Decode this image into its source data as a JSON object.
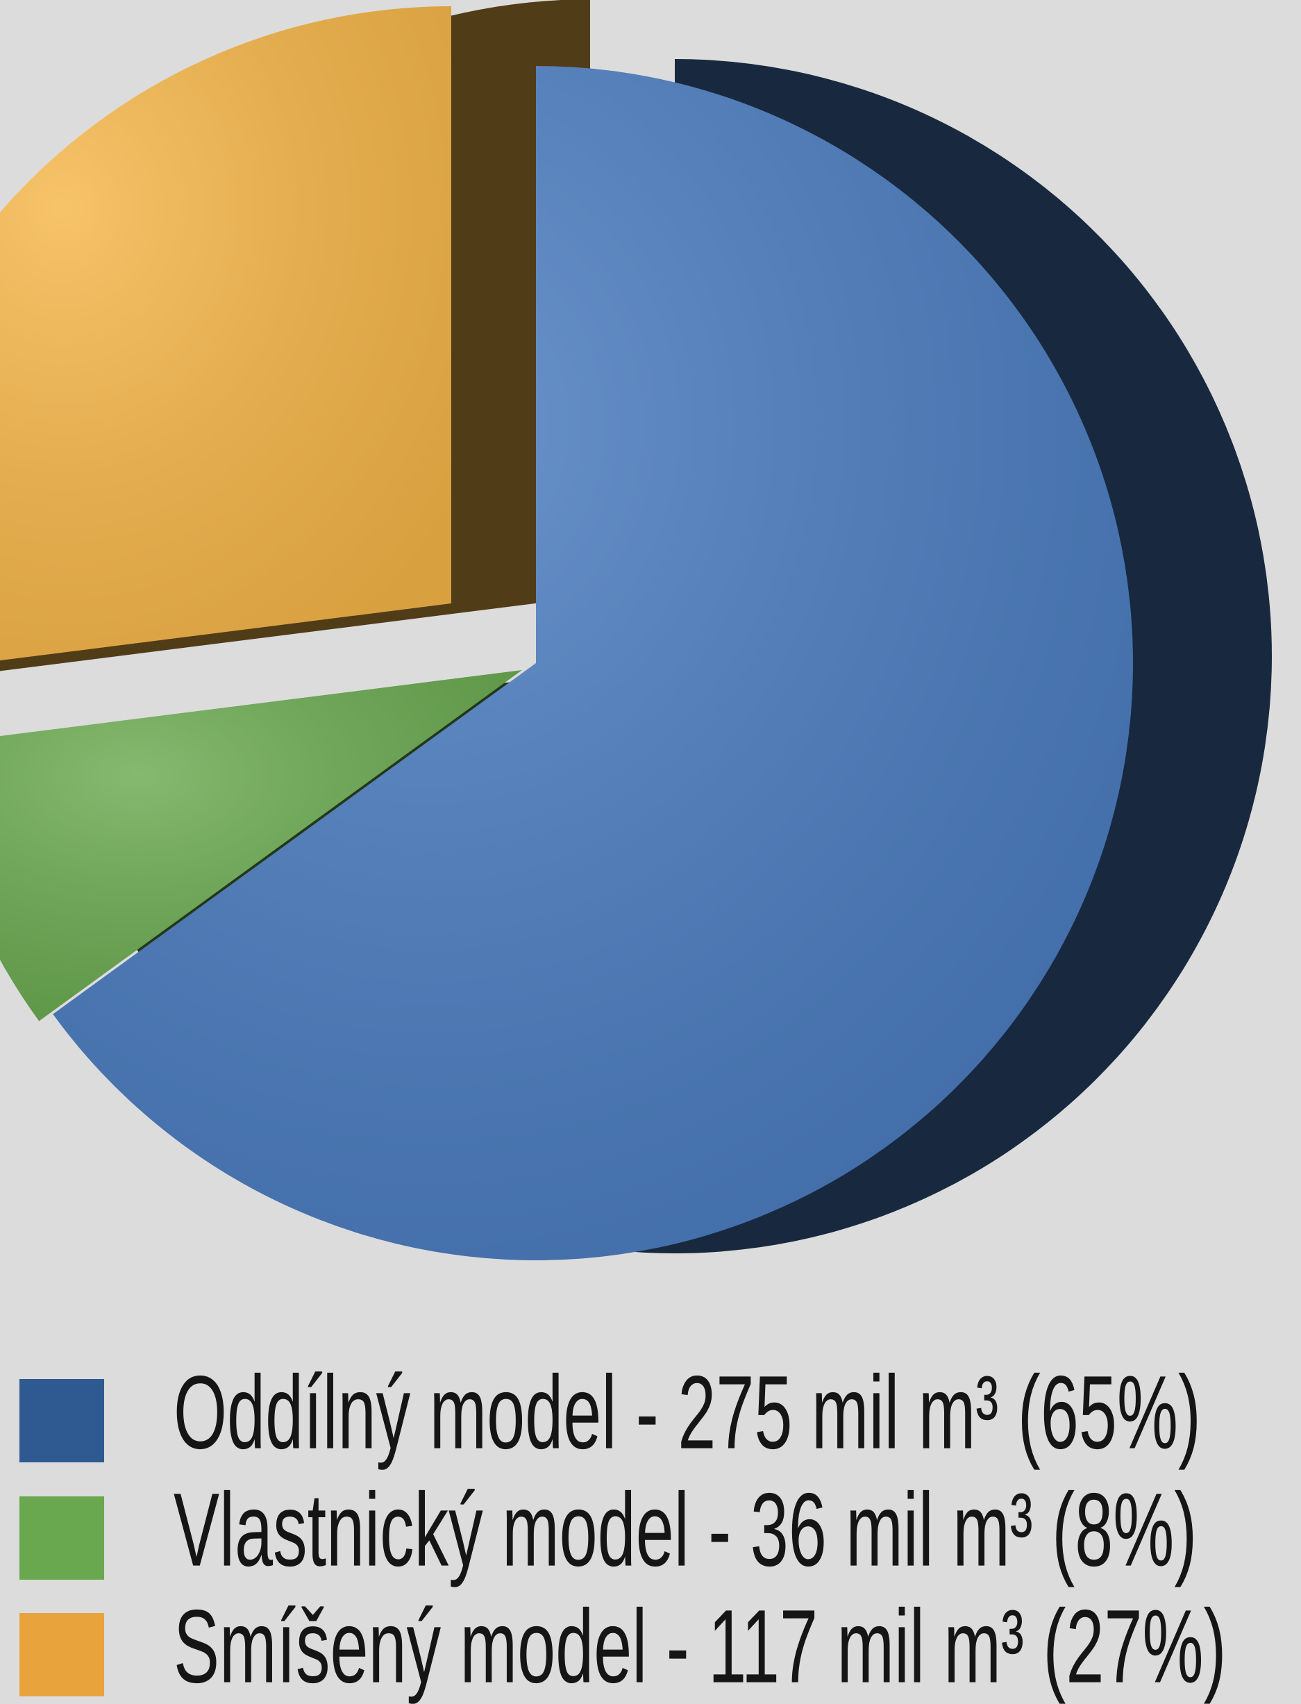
{
  "chart_data": {
    "type": "pie",
    "categories": [
      "Oddílný model - 275 mil m³ (65%)",
      "Vlastnický model - 36 mil m³ (8%)",
      "Smíšený model - 117 mil m³ (27%)"
    ],
    "values": [
      65,
      8,
      27
    ],
    "colors": [
      "#4a7cc0",
      "#6aaa50",
      "#f6b648"
    ],
    "legend_colors": [
      "#2f5a91",
      "#6aa84f",
      "#e8a33d"
    ],
    "legend": "bottom"
  }
}
